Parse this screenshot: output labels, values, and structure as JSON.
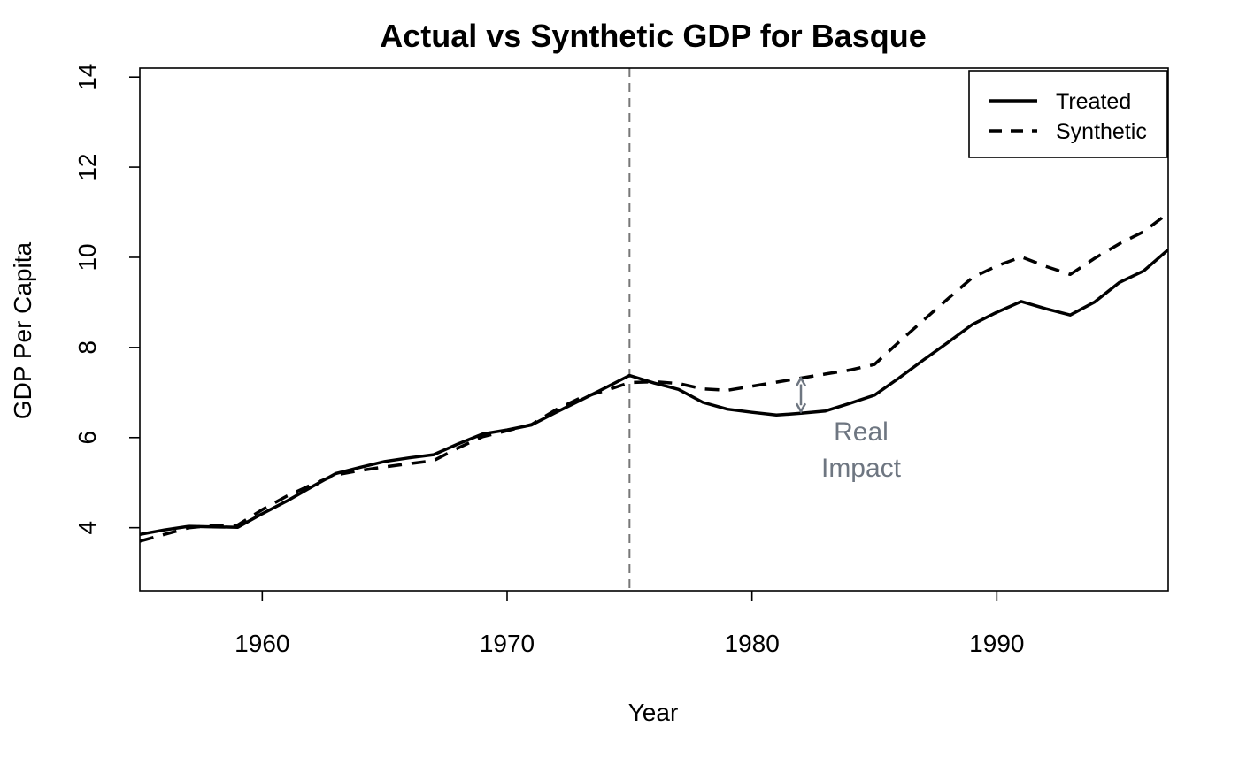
{
  "chart_data": {
    "type": "line",
    "title": "Actual vs Synthetic GDP for Basque",
    "xlabel": "Year",
    "ylabel": "GDP Per Capita",
    "xlim": [
      1955,
      1997
    ],
    "ylim": [
      2.6,
      14.2
    ],
    "x_ticks": [
      1960,
      1970,
      1980,
      1990
    ],
    "y_ticks": [
      4,
      6,
      8,
      10,
      12,
      14
    ],
    "grid": false,
    "legend_position": "top-right",
    "x": [
      1955,
      1956,
      1957,
      1958,
      1959,
      1960,
      1961,
      1962,
      1963,
      1964,
      1965,
      1966,
      1967,
      1968,
      1969,
      1970,
      1971,
      1972,
      1973,
      1974,
      1975,
      1976,
      1977,
      1978,
      1979,
      1980,
      1981,
      1982,
      1983,
      1984,
      1985,
      1986,
      1987,
      1988,
      1989,
      1990,
      1991,
      1992,
      1993,
      1994,
      1995,
      1996,
      1997
    ],
    "series": [
      {
        "name": "Treated",
        "style": "solid",
        "color": "#000000",
        "values": [
          3.85,
          3.95,
          4.03,
          4.02,
          4.01,
          4.31,
          4.59,
          4.9,
          5.2,
          5.34,
          5.47,
          5.55,
          5.62,
          5.86,
          6.08,
          6.17,
          6.28,
          6.56,
          6.83,
          7.1,
          7.38,
          7.21,
          7.07,
          6.78,
          6.63,
          6.56,
          6.5,
          6.54,
          6.59,
          6.76,
          6.94,
          7.32,
          7.72,
          8.11,
          8.51,
          8.78,
          9.02,
          8.86,
          8.72,
          9.01,
          9.44,
          9.7,
          10.17
        ]
      },
      {
        "name": "Synthetic",
        "style": "dashed",
        "color": "#000000",
        "values": [
          3.7,
          3.85,
          4.0,
          4.05,
          4.06,
          4.4,
          4.7,
          4.95,
          5.17,
          5.27,
          5.35,
          5.42,
          5.49,
          5.77,
          6.02,
          6.15,
          6.29,
          6.62,
          6.88,
          7.04,
          7.22,
          7.24,
          7.2,
          7.08,
          7.05,
          7.14,
          7.23,
          7.32,
          7.41,
          7.5,
          7.62,
          8.12,
          8.6,
          9.08,
          9.55,
          9.81,
          10.01,
          9.8,
          9.62,
          9.98,
          10.3,
          10.57,
          10.98
        ]
      }
    ],
    "vertical_line": {
      "x": 1975,
      "style": "dashed",
      "color": "#777777"
    },
    "annotation": {
      "x": 1982,
      "y_from": 6.58,
      "y_to": 7.32,
      "color": "#6e7681",
      "text_lines": [
        "Real",
        "Impact"
      ]
    }
  }
}
